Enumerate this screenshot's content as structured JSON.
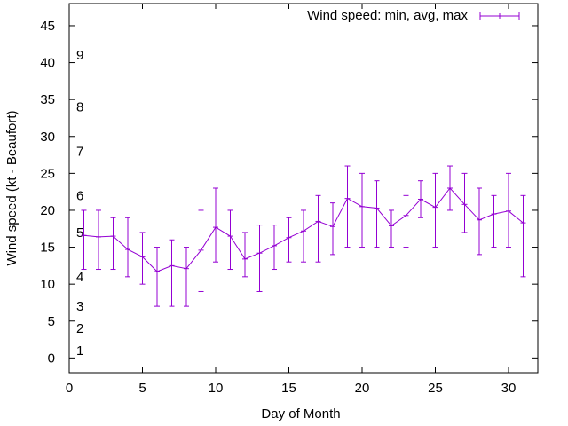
{
  "chart_data": {
    "type": "line",
    "title": "",
    "xlabel": "Day of Month",
    "ylabel": "Wind speed (kt - Beaufort)",
    "xlim": [
      0,
      32
    ],
    "ylim": [
      -2,
      48
    ],
    "x_ticks": [
      0,
      5,
      10,
      15,
      20,
      25,
      30
    ],
    "y_ticks": [
      0,
      5,
      10,
      15,
      20,
      25,
      30,
      35,
      40,
      45
    ],
    "grid": false,
    "legend": {
      "position": "top-right",
      "label": "Wind speed: min, avg, max"
    },
    "beaufort_labels": [
      {
        "label": "1",
        "y": 1
      },
      {
        "label": "2",
        "y": 4
      },
      {
        "label": "3",
        "y": 7
      },
      {
        "label": "4",
        "y": 11
      },
      {
        "label": "5",
        "y": 17
      },
      {
        "label": "6",
        "y": 22
      },
      {
        "label": "7",
        "y": 28
      },
      {
        "label": "8",
        "y": 34
      },
      {
        "label": "9",
        "y": 41
      }
    ],
    "series": [
      {
        "name": "Wind speed: min, avg, max",
        "color": "#9400d3",
        "points": [
          {
            "x": 1,
            "min": 12,
            "avg": 16.6,
            "max": 20
          },
          {
            "x": 2,
            "min": 12,
            "avg": 16.4,
            "max": 20
          },
          {
            "x": 3,
            "min": 12,
            "avg": 16.5,
            "max": 19
          },
          {
            "x": 4,
            "min": 11,
            "avg": 14.7,
            "max": 19
          },
          {
            "x": 5,
            "min": 10,
            "avg": 13.7,
            "max": 17
          },
          {
            "x": 6,
            "min": 7,
            "avg": 11.7,
            "max": 15
          },
          {
            "x": 7,
            "min": 7,
            "avg": 12.5,
            "max": 16
          },
          {
            "x": 8,
            "min": 7,
            "avg": 12.1,
            "max": 15
          },
          {
            "x": 9,
            "min": 9,
            "avg": 14.6,
            "max": 20
          },
          {
            "x": 10,
            "min": 13,
            "avg": 17.7,
            "max": 23
          },
          {
            "x": 11,
            "min": 12,
            "avg": 16.5,
            "max": 20
          },
          {
            "x": 12,
            "min": 11,
            "avg": 13.4,
            "max": 17
          },
          {
            "x": 13,
            "min": 9,
            "avg": 14.2,
            "max": 18
          },
          {
            "x": 14,
            "min": 12,
            "avg": 15.2,
            "max": 18
          },
          {
            "x": 15,
            "min": 13,
            "avg": 16.3,
            "max": 19
          },
          {
            "x": 16,
            "min": 13,
            "avg": 17.2,
            "max": 20
          },
          {
            "x": 17,
            "min": 13,
            "avg": 18.5,
            "max": 22
          },
          {
            "x": 18,
            "min": 14,
            "avg": 17.8,
            "max": 21
          },
          {
            "x": 19,
            "min": 15,
            "avg": 21.6,
            "max": 26
          },
          {
            "x": 20,
            "min": 15,
            "avg": 20.5,
            "max": 25
          },
          {
            "x": 21,
            "min": 15,
            "avg": 20.3,
            "max": 24
          },
          {
            "x": 22,
            "min": 15,
            "avg": 17.9,
            "max": 20
          },
          {
            "x": 23,
            "min": 15,
            "avg": 19.3,
            "max": 22
          },
          {
            "x": 24,
            "min": 19,
            "avg": 21.5,
            "max": 24
          },
          {
            "x": 25,
            "min": 15,
            "avg": 20.4,
            "max": 25
          },
          {
            "x": 26,
            "min": 20,
            "avg": 23.0,
            "max": 26
          },
          {
            "x": 27,
            "min": 17,
            "avg": 20.8,
            "max": 25
          },
          {
            "x": 28,
            "min": 14,
            "avg": 18.7,
            "max": 23
          },
          {
            "x": 29,
            "min": 15,
            "avg": 19.5,
            "max": 22
          },
          {
            "x": 30,
            "min": 15,
            "avg": 19.9,
            "max": 25
          },
          {
            "x": 31,
            "min": 11,
            "avg": 18.3,
            "max": 22
          }
        ]
      }
    ]
  }
}
